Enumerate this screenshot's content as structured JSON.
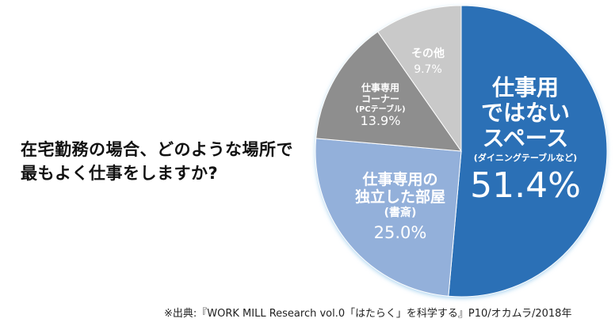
{
  "chart_data": {
    "type": "pie",
    "title": "在宅勤務の場合、どのような場所で最もよく仕事をしますか?",
    "title_lines": [
      "在宅勤務の場合、どのような場所で",
      "最もよく仕事をしますか?"
    ],
    "start": "top",
    "direction": "clockwise",
    "slices": [
      {
        "label_lines": [
          "仕事用",
          "ではない",
          "スペース",
          "(ダイニングテーブルなど)"
        ],
        "value": 51.4,
        "value_label": "51.4%",
        "color": "#2b70b6"
      },
      {
        "label_lines": [
          "仕事専用の",
          "独立した部屋",
          "(書斎)"
        ],
        "value": 25.0,
        "value_label": "25.0%",
        "color": "#93b0da"
      },
      {
        "label_lines": [
          "仕事専用",
          "コーナー",
          "(PCテーブル)"
        ],
        "value": 13.9,
        "value_label": "13.9%",
        "color": "#8e8e8e"
      },
      {
        "label_lines": [
          "その他"
        ],
        "value": 9.7,
        "value_label": "9.7%",
        "color": "#c9c9c9"
      }
    ],
    "source": "※出典:『WORK MILL Research vol.0「はたらく」を科学する』P10/オカムラ/2018年"
  }
}
